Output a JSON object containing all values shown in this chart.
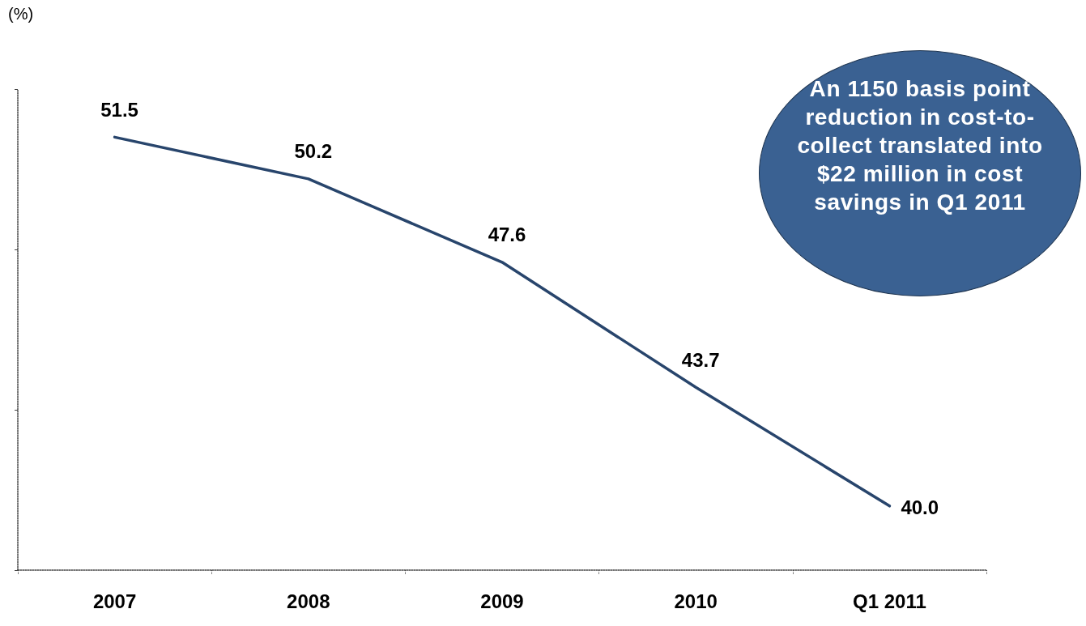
{
  "chart_data": {
    "type": "line",
    "ylabel": "(%)",
    "categories": [
      "2007",
      "2008",
      "2009",
      "2010",
      "Q1 2011"
    ],
    "values": [
      51.5,
      50.2,
      47.6,
      43.7,
      40.0
    ],
    "value_labels": [
      "51.5",
      "50.2",
      "47.6",
      "43.7",
      "40.0"
    ],
    "color": "#28456c",
    "ylim": [
      38,
      53
    ],
    "yticks": [
      {
        "value": 38,
        "label": null
      },
      {
        "value": 43,
        "label": null
      },
      {
        "value": 48,
        "label": null
      },
      {
        "value": 53,
        "label": null
      }
    ],
    "tick_labels": "x",
    "grid": false,
    "marker": "none",
    "line_style": "solid",
    "annotations": [
      "An 1150 basis point reduction in cost-to-collect translated into $22 million in cost savings in Q1 2011"
    ]
  }
}
